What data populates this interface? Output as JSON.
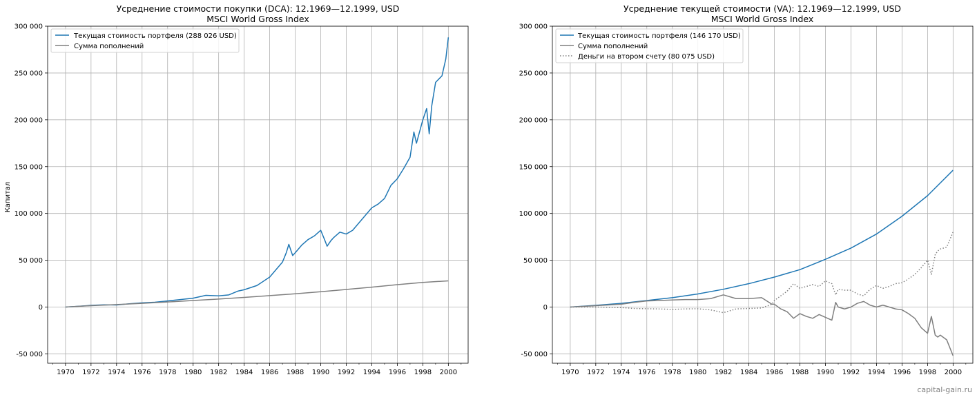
{
  "watermark": "capital-gain.ru",
  "y_label": "Капитал",
  "colors": {
    "portfolio": "#1f77b4",
    "contrib": "#7f7f7f",
    "grid": "#b0b0b0"
  },
  "chart_data": [
    {
      "type": "line",
      "title_line1": "Усреднение стоимости покупки (DCA): 12.1969—12.1999, USD",
      "title_line2": "MSCI World Gross Index",
      "ylabel": "Капитал",
      "xlim": [
        1968.6,
        2001.55
      ],
      "ylim": [
        -60000,
        300000
      ],
      "grid": true,
      "legend_position": "top-left",
      "x_ticks": [
        "1970",
        "1972",
        "1974",
        "1976",
        "1978",
        "1980",
        "1982",
        "1984",
        "1986",
        "1988",
        "1990",
        "1992",
        "1994",
        "1996",
        "1998",
        "2000"
      ],
      "y_ticks": [
        "300 000",
        "250 000",
        "200 000",
        "150 000",
        "100 000",
        "50 000",
        "0",
        "-50 000"
      ],
      "series": [
        {
          "name": "Текущая стоимость портфеля (288 026 USD)",
          "color": "#1f77b4",
          "style": "solid",
          "x": [
            1970,
            1971,
            1972,
            1973,
            1974,
            1975,
            1976,
            1977,
            1978,
            1979,
            1980,
            1981,
            1982,
            1982.8,
            1983.5,
            1984,
            1985,
            1986,
            1986.5,
            1987,
            1987.3,
            1987.5,
            1987.8,
            1988,
            1988.5,
            1989,
            1989.5,
            1990,
            1990.3,
            1990.5,
            1990.8,
            1991,
            1991.5,
            1992,
            1992.5,
            1993,
            1993.5,
            1994,
            1994.5,
            1995,
            1995.5,
            1996,
            1996.5,
            1997,
            1997.3,
            1997.5,
            1997.8,
            1998,
            1998.3,
            1998.5,
            1998.7,
            1999,
            1999.5,
            1999.8,
            2000
          ],
          "y": [
            0,
            800,
            1800,
            2400,
            2200,
            3500,
            4500,
            5200,
            6500,
            8000,
            9500,
            12500,
            12000,
            13000,
            17000,
            18500,
            23000,
            32000,
            40000,
            48000,
            58000,
            67000,
            55000,
            58000,
            66000,
            72000,
            76000,
            82000,
            72000,
            65000,
            71000,
            74000,
            80000,
            78000,
            82000,
            90000,
            98000,
            106000,
            110000,
            116000,
            130000,
            137000,
            148000,
            160000,
            187000,
            175000,
            190000,
            200000,
            212000,
            185000,
            215000,
            240000,
            247000,
            265000,
            288026
          ]
        },
        {
          "name": "Сумма пополнений",
          "color": "#7f7f7f",
          "style": "solid",
          "x": [
            1970,
            1972,
            1974,
            1976,
            1978,
            1980,
            1982,
            1984,
            1986,
            1988,
            1990,
            1992,
            1994,
            1996,
            1998,
            2000
          ],
          "y": [
            0,
            1500,
            2700,
            4000,
            5400,
            7000,
            8600,
            10300,
            12200,
            14200,
            16400,
            18800,
            21300,
            23900,
            26300,
            28000
          ]
        }
      ]
    },
    {
      "type": "line",
      "title_line1": "Усреднение текущей стоимости (VA): 12.1969—12.1999, USD",
      "title_line2": "MSCI World Gross Index",
      "ylabel": "",
      "xlim": [
        1968.6,
        2001.55
      ],
      "ylim": [
        -60000,
        300000
      ],
      "grid": true,
      "legend_position": "top-left",
      "x_ticks": [
        "1970",
        "1972",
        "1974",
        "1976",
        "1978",
        "1980",
        "1982",
        "1984",
        "1986",
        "1988",
        "1990",
        "1992",
        "1994",
        "1996",
        "1998",
        "2000"
      ],
      "y_ticks": [
        "300 000",
        "250 000",
        "200 000",
        "150 000",
        "100 000",
        "50 000",
        "0",
        "-50 000"
      ],
      "series": [
        {
          "name": "Текущая стоимость портфеля (146 170 USD)",
          "color": "#1f77b4",
          "style": "solid",
          "x": [
            1970,
            1972,
            1974,
            1976,
            1978,
            1980,
            1982,
            1984,
            1986,
            1988,
            1990,
            1992,
            1994,
            1996,
            1998,
            2000
          ],
          "y": [
            0,
            1800,
            4000,
            7000,
            10000,
            14000,
            19000,
            25000,
            32000,
            40000,
            51000,
            63000,
            78000,
            97000,
            119000,
            146170
          ]
        },
        {
          "name": "Сумма пополнений",
          "color": "#7f7f7f",
          "style": "solid",
          "x": [
            1970,
            1972,
            1974,
            1975,
            1976,
            1977,
            1978,
            1979,
            1980,
            1981,
            1982,
            1983,
            1984,
            1985,
            1985.8,
            1986,
            1986.5,
            1987,
            1987.5,
            1988,
            1988.5,
            1989,
            1989.5,
            1990,
            1990.5,
            1990.8,
            1991,
            1991.5,
            1992,
            1992.5,
            1993,
            1993.5,
            1994,
            1994.5,
            1995,
            1995.5,
            1996,
            1996.5,
            1997,
            1997.5,
            1998,
            1998.3,
            1998.6,
            1998.8,
            1999,
            1999.5,
            2000
          ],
          "y": [
            0,
            1500,
            3000,
            5000,
            6500,
            7000,
            7500,
            8000,
            8000,
            9000,
            13000,
            9000,
            9000,
            10000,
            3000,
            3000,
            -2000,
            -5000,
            -12000,
            -7000,
            -10000,
            -12000,
            -8000,
            -11000,
            -14000,
            5000,
            0,
            -2000,
            0,
            4000,
            6000,
            2000,
            0,
            2000,
            0,
            -2000,
            -3000,
            -7000,
            -12000,
            -22000,
            -28000,
            -10000,
            -30000,
            -32000,
            -30000,
            -35000,
            -52000
          ]
        },
        {
          "name": "Деньги на втором счету (80 075 USD)",
          "color": "#7f7f7f",
          "style": "dotted",
          "x": [
            1970,
            1972,
            1974,
            1975,
            1976,
            1977,
            1978,
            1979,
            1980,
            1981,
            1982,
            1983,
            1984,
            1985,
            1985.8,
            1986,
            1986.5,
            1987,
            1987.5,
            1988,
            1988.5,
            1989,
            1989.5,
            1990,
            1990.5,
            1990.8,
            1991,
            1991.5,
            1992,
            1992.5,
            1993,
            1993.5,
            1994,
            1994.5,
            1995,
            1995.5,
            1996,
            1996.5,
            1997,
            1997.5,
            1998,
            1998.3,
            1998.6,
            1998.8,
            1999,
            1999.5,
            2000
          ],
          "y": [
            0,
            0,
            -500,
            -1500,
            -1800,
            -2000,
            -2500,
            -2000,
            -1800,
            -3000,
            -6000,
            -2000,
            -1500,
            -1000,
            3000,
            7000,
            12000,
            17000,
            25000,
            20000,
            22000,
            24000,
            22000,
            28000,
            25000,
            13000,
            19000,
            18000,
            18000,
            14000,
            12000,
            19000,
            23000,
            20000,
            22000,
            25000,
            26000,
            30000,
            35000,
            42000,
            50000,
            35000,
            56000,
            60000,
            62000,
            64000,
            80075
          ]
        }
      ]
    }
  ]
}
